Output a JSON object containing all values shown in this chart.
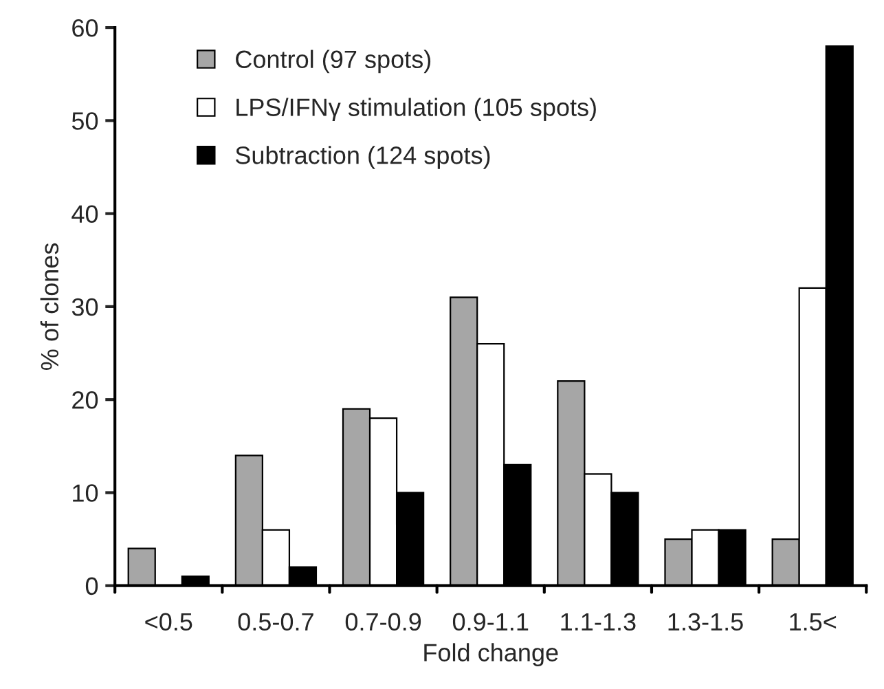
{
  "chart_data": {
    "type": "bar",
    "xlabel": "Fold change",
    "ylabel": "% of clones",
    "categories": [
      "<0.5",
      "0.5-0.7",
      "0.7-0.9",
      "0.9-1.1",
      "1.1-1.3",
      "1.3-1.5",
      "1.5<"
    ],
    "series": [
      {
        "name": "Control (97 spots)",
        "color": "#a6a6a6",
        "values": [
          4,
          14,
          19,
          31,
          22,
          5,
          5
        ]
      },
      {
        "name": "LPS/IFNγ stimulation (105 spots)",
        "color": "#ffffff",
        "values": [
          null,
          6,
          18,
          26,
          12,
          6,
          32
        ]
      },
      {
        "name": "Subtraction (124 spots)",
        "color": "#000000",
        "values": [
          1,
          2,
          10,
          13,
          10,
          6,
          58
        ]
      }
    ],
    "ylim": [
      0,
      60
    ],
    "yticks": [
      0,
      10,
      20,
      30,
      40,
      50,
      60
    ],
    "grid": false,
    "legend": "top left"
  }
}
